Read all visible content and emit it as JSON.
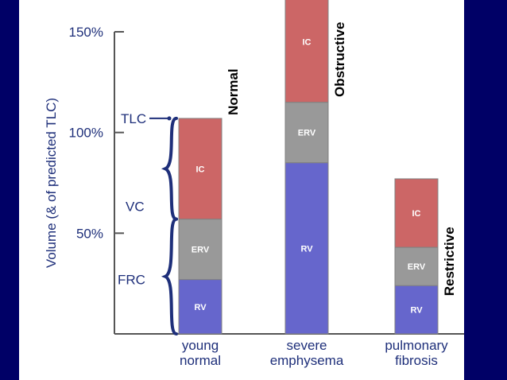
{
  "chart_data": {
    "type": "bar",
    "stacked": true,
    "ylabel": "Volume (& of predicted TLC)",
    "yticks": [
      "150%",
      "100%",
      "50%"
    ],
    "ylim": [
      0,
      150
    ],
    "categories": [
      {
        "label": [
          "young",
          "normal"
        ],
        "pattern": "Normal"
      },
      {
        "label": [
          "severe",
          "emphysema"
        ],
        "pattern": "Obstructive"
      },
      {
        "label": [
          "pulmonary",
          "fibrosis"
        ],
        "pattern": "Restrictive"
      }
    ],
    "series": [
      {
        "name": "RV",
        "color": "#6666cc",
        "values": [
          27,
          85,
          24
        ]
      },
      {
        "name": "ERV",
        "color": "#999999",
        "values": [
          30,
          30,
          19
        ]
      },
      {
        "name": "IC",
        "color": "#cc6666",
        "values": [
          50,
          60,
          34
        ]
      }
    ],
    "annotations": {
      "TLC": "TLC",
      "VC": "VC",
      "FRC": "FRC"
    },
    "colors": {
      "axis": "#555555",
      "label_text": "#1e2f7a",
      "brace": "#1e2f7a",
      "background_frame": "#000066"
    }
  }
}
